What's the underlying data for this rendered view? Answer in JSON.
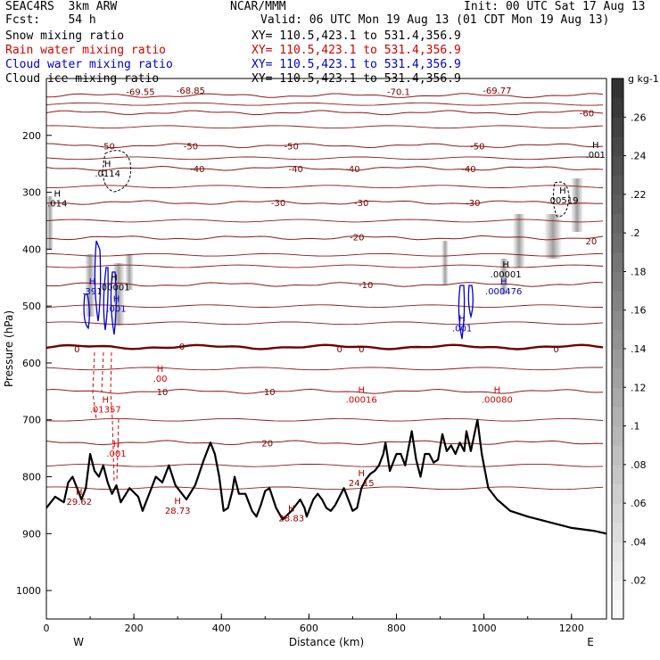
{
  "header": {
    "left": [
      "SEAC4RS  3km ARW",
      "Fcst:    54 h"
    ],
    "center": "NCAR/MMM",
    "init": "Init: 00 UTC Sat 17 Aug 13",
    "valid": "Valid: 06 UTC Mon 19 Aug 13 (01 CDT Mon 19 Aug 13)",
    "fields": [
      {
        "name": "Snow mixing ratio",
        "xy": "XY= 110.5,423.1 to 531.4,356.9",
        "color": "#000000"
      },
      {
        "name": "Rain water mixing ratio",
        "xy": "XY= 110.5,423.1 to 531.4,356.9",
        "color": "#d00000"
      },
      {
        "name": "Cloud water mixing ratio",
        "xy": "XY= 110.5,423.1 to 531.4,356.9",
        "color": "#0000cc"
      },
      {
        "name": "Cloud ice mixing ratio",
        "xy": "XY= 110.5,423.1 to 531.4,356.9",
        "color": "#000000"
      }
    ]
  },
  "chart_data": {
    "type": "heatmap",
    "title": "",
    "xlabel": "Distance (km)",
    "ylabel": "Pressure (hPa)",
    "xlim": [
      0,
      1280
    ],
    "ylim": [
      1050,
      100
    ],
    "x_ticks": [
      0,
      200,
      400,
      600,
      800,
      1000,
      1200
    ],
    "y_ticks": [
      200,
      300,
      400,
      500,
      600,
      700,
      800,
      900,
      1000
    ],
    "x_end_labels": {
      "left": "W",
      "right": "E"
    },
    "colorbar": {
      "unit": "g kg-1",
      "ticks": [
        ".02",
        ".04",
        ".06",
        ".08",
        ".1",
        ".12",
        ".14",
        ".16",
        ".18",
        ".2",
        ".22",
        ".24",
        ".26"
      ],
      "max": 0.28
    },
    "temperature_contours": [
      {
        "label": "-70",
        "p": 130
      },
      {
        "label": "-60",
        "p": 160
      },
      {
        "label": "-50",
        "p": 218
      },
      {
        "label": "-40",
        "p": 258
      },
      {
        "label": "-30",
        "p": 318
      },
      {
        "label": "-20",
        "p": 380
      },
      {
        "label": "-10",
        "p": 462
      },
      {
        "label": "0",
        "p": 572
      },
      {
        "label": "10",
        "p": 650
      },
      {
        "label": "20",
        "p": 740
      }
    ],
    "temperature_labels": [
      {
        "text": "-69.55",
        "x": 215,
        "p": 123
      },
      {
        "text": "-68.85",
        "x": 330,
        "p": 120
      },
      {
        "text": "-70.1",
        "x": 805,
        "p": 123
      },
      {
        "text": "-69.77",
        "x": 1030,
        "p": 120
      },
      {
        "text": "-60",
        "x": 1235,
        "p": 160
      },
      {
        "text": "-50",
        "x": 140,
        "p": 218
      },
      {
        "text": "-50",
        "x": 330,
        "p": 218
      },
      {
        "text": "-50",
        "x": 560,
        "p": 218
      },
      {
        "text": "-50",
        "x": 985,
        "p": 218
      },
      {
        "text": "-40",
        "x": 345,
        "p": 258
      },
      {
        "text": "-40",
        "x": 570,
        "p": 258
      },
      {
        "text": "-40",
        "x": 700,
        "p": 258
      },
      {
        "text": "-40",
        "x": 965,
        "p": 258
      },
      {
        "text": "-30",
        "x": 530,
        "p": 318
      },
      {
        "text": "-30",
        "x": 720,
        "p": 318
      },
      {
        "text": "-30",
        "x": 975,
        "p": 318
      },
      {
        "text": "-20",
        "x": 710,
        "p": 378
      },
      {
        "text": "20",
        "x": 1245,
        "p": 385
      },
      {
        "text": "-10",
        "x": 730,
        "p": 462
      },
      {
        "text": "0",
        "x": 70,
        "p": 575
      },
      {
        "text": "0",
        "x": 310,
        "p": 570
      },
      {
        "text": "0",
        "x": 670,
        "p": 575
      },
      {
        "text": "0",
        "x": 720,
        "p": 575
      },
      {
        "text": "0",
        "x": 1165,
        "p": 575
      },
      {
        "text": "10",
        "x": 265,
        "p": 650
      },
      {
        "text": "10",
        "x": 510,
        "p": 650
      },
      {
        "text": "20",
        "x": 505,
        "p": 740
      }
    ],
    "terrain_pressure": {
      "x": [
        0,
        20,
        40,
        50,
        60,
        80,
        90,
        100,
        110,
        120,
        130,
        140,
        150,
        160,
        170,
        190,
        210,
        220,
        235,
        250,
        265,
        280,
        295,
        320,
        340,
        360,
        375,
        385,
        395,
        400,
        405,
        415,
        425,
        430,
        440,
        455,
        470,
        480,
        490,
        500,
        510,
        525,
        540,
        560,
        580,
        590,
        595,
        605,
        610,
        620,
        630,
        640,
        650,
        660,
        670,
        680,
        690,
        700,
        710,
        720,
        730,
        740,
        750,
        760,
        770,
        775,
        785,
        800,
        810,
        820,
        835,
        845,
        855,
        865,
        875,
        885,
        895,
        905,
        915,
        925,
        935,
        945,
        955,
        960,
        970,
        985,
        995,
        1000,
        1010,
        1030,
        1060,
        1100,
        1150,
        1200,
        1250,
        1280
      ],
      "p": [
        855,
        835,
        845,
        810,
        800,
        840,
        820,
        760,
        790,
        800,
        780,
        810,
        830,
        815,
        845,
        820,
        835,
        860,
        830,
        800,
        810,
        780,
        815,
        840,
        815,
        770,
        740,
        760,
        800,
        830,
        860,
        855,
        825,
        800,
        830,
        830,
        860,
        870,
        850,
        825,
        820,
        855,
        875,
        860,
        840,
        855,
        870,
        850,
        840,
        830,
        840,
        855,
        860,
        850,
        835,
        820,
        840,
        860,
        855,
        820,
        805,
        795,
        790,
        780,
        760,
        740,
        790,
        760,
        760,
        780,
        720,
        770,
        800,
        760,
        760,
        775,
        770,
        725,
        755,
        745,
        760,
        740,
        755,
        720,
        755,
        700,
        760,
        780,
        820,
        840,
        860,
        870,
        880,
        890,
        895,
        900
      ]
    },
    "maxima": [
      {
        "text": "29.62",
        "x": 75,
        "p": 845,
        "color": "#a00000"
      },
      {
        "text": "28.73",
        "x": 300,
        "p": 860,
        "color": "#a00000"
      },
      {
        "text": "28.83",
        "x": 560,
        "p": 874,
        "color": "#a00000"
      },
      {
        "text": "24.15",
        "x": 720,
        "p": 812,
        "color": "#a00000"
      },
      {
        "text": ".00",
        "x": 260,
        "p": 628,
        "color": "#d00000"
      },
      {
        "text": ".01357",
        "x": 135,
        "p": 682,
        "color": "#d00000"
      },
      {
        "text": ".001",
        "x": 160,
        "p": 760,
        "color": "#d00000"
      },
      {
        "text": ".00016",
        "x": 720,
        "p": 665,
        "color": "#d00000"
      },
      {
        "text": ".00080",
        "x": 1030,
        "p": 665,
        "color": "#d00000"
      },
      {
        "text": ".0114",
        "x": 140,
        "p": 268,
        "color": "#000000"
      },
      {
        "text": ".00519",
        "x": 1180,
        "p": 315,
        "color": "#000000"
      },
      {
        "text": ".00001",
        "x": 1050,
        "p": 445,
        "color": "#000000"
      },
      {
        "text": ".00001",
        "x": 155,
        "p": 468,
        "color": "#000000"
      },
      {
        "text": ".001",
        "x": 1255,
        "p": 235,
        "color": "#000000"
      },
      {
        "text": ".014",
        "x": 25,
        "p": 320,
        "color": "#000000"
      },
      {
        "text": ".391",
        "x": 105,
        "p": 475,
        "color": "#0000cc"
      },
      {
        "text": ".000476",
        "x": 1045,
        "p": 475,
        "color": "#0000cc"
      },
      {
        "text": ".001",
        "x": 160,
        "p": 505,
        "color": "#0000cc"
      },
      {
        "text": ".001",
        "x": 950,
        "p": 540,
        "color": "#0000cc"
      }
    ]
  }
}
